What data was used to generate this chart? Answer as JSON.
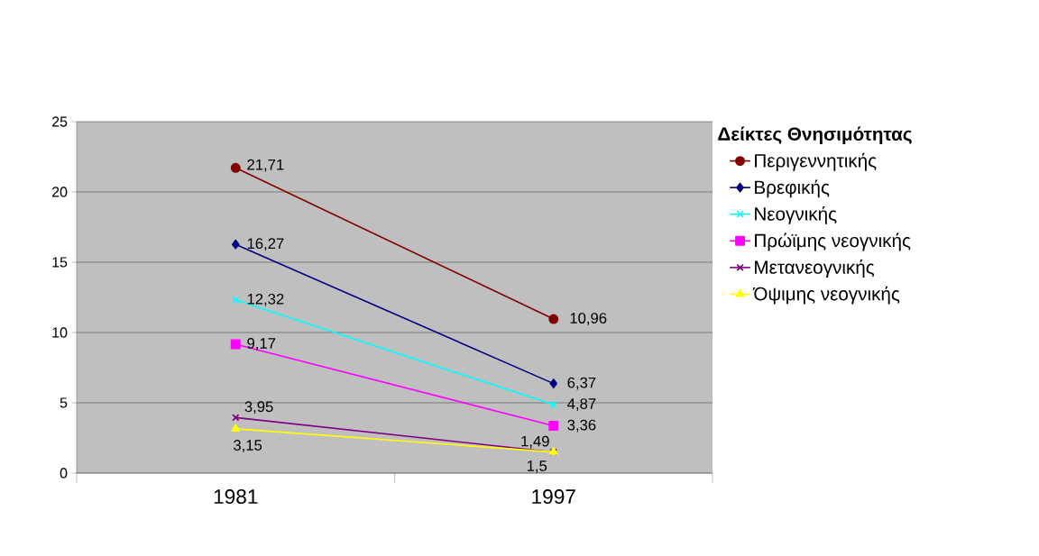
{
  "chart_data": {
    "type": "line",
    "legend_title": "Δείκτες Θνησιμότητας",
    "categories": [
      "1981",
      "1997"
    ],
    "series": [
      {
        "name": "Περιγεννητικής",
        "color": "#800000",
        "marker": "circle",
        "values": [
          21.71,
          10.96
        ],
        "value_labels": [
          "21,71",
          "10,96"
        ]
      },
      {
        "name": "Βρεφικής",
        "color": "#000080",
        "marker": "diamond",
        "values": [
          16.27,
          6.37
        ],
        "value_labels": [
          "16,27",
          "6,37"
        ]
      },
      {
        "name": "Νεογνικής",
        "color": "#00ffff",
        "marker": "cross",
        "values": [
          12.32,
          4.87
        ],
        "value_labels": [
          "12,32",
          "4,87"
        ]
      },
      {
        "name": "Πρώϊμης νεογνικής",
        "color": "#ff00ff",
        "marker": "square",
        "values": [
          9.17,
          3.36
        ],
        "value_labels": [
          "9,17",
          "3,36"
        ]
      },
      {
        "name": "Μετανεογνικής",
        "color": "#800080",
        "marker": "cross",
        "values": [
          3.95,
          1.49
        ],
        "value_labels": [
          "3,95",
          "1,49"
        ]
      },
      {
        "name": "Όψιμης νεογνικής",
        "color": "#ffff00",
        "marker": "triangle",
        "values": [
          3.15,
          1.5
        ],
        "value_labels": [
          "3,15",
          "1,5"
        ]
      }
    ],
    "ylim": [
      0,
      25
    ],
    "yticks": [
      0,
      5,
      10,
      15,
      20,
      25
    ],
    "grid": "y",
    "legend": "right",
    "line_style": "solid"
  }
}
